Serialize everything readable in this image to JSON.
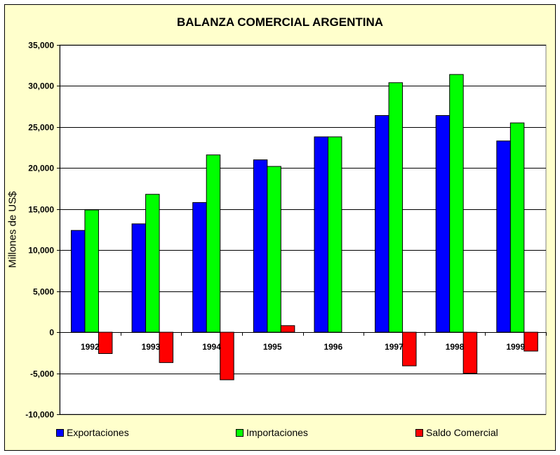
{
  "chart_data": {
    "type": "bar",
    "title": "BALANZA COMERCIAL ARGENTINA",
    "ylabel": "Millones de US$",
    "xlabel": "",
    "categories": [
      "1992",
      "1993",
      "1994",
      "1995",
      "1996",
      "1997",
      "1998",
      "1999"
    ],
    "series": [
      {
        "name": "Exportaciones",
        "color": "#0000ff",
        "values": [
          12400,
          13200,
          15800,
          21000,
          23800,
          26400,
          26400,
          23300
        ]
      },
      {
        "name": "Importaciones",
        "color": "#00ff00",
        "values": [
          14900,
          16800,
          21600,
          20200,
          23800,
          30400,
          31400,
          25500
        ]
      },
      {
        "name": "Saldo Comercial",
        "color": "#ff0000",
        "values": [
          -2600,
          -3700,
          -5800,
          800,
          0,
          -4100,
          -5000,
          -2300
        ]
      }
    ],
    "ylim": [
      -10000,
      35000
    ],
    "yticks": [
      "-10,000",
      "-5,000",
      "0",
      "5,000",
      "10,000",
      "15,000",
      "20,000",
      "25,000",
      "30,000",
      "35,000"
    ],
    "ytick_values": [
      -10000,
      -5000,
      0,
      5000,
      10000,
      15000,
      20000,
      25000,
      30000,
      35000
    ],
    "grid": true,
    "legend": "bottom"
  }
}
